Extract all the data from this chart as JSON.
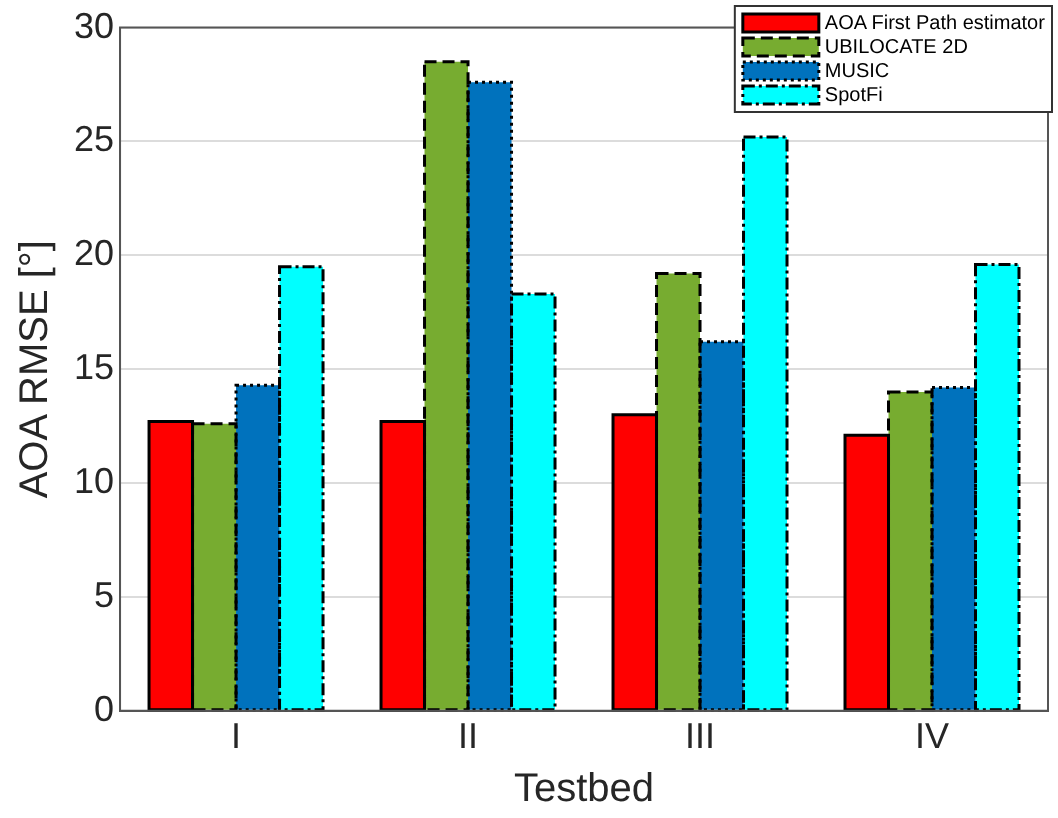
{
  "chart_data": {
    "type": "bar",
    "xlabel": "Testbed",
    "ylabel": "AOA RMSE [°]",
    "categories": [
      "I",
      "II",
      "III",
      "IV"
    ],
    "series": [
      {
        "name": "AOA First Path estimator",
        "color": "#ff0000",
        "line_style": "solid",
        "values": [
          12.7,
          12.7,
          13.0,
          12.1
        ]
      },
      {
        "name": "UBILOCATE 2D",
        "color": "#77ac30",
        "line_style": "dashed",
        "values": [
          12.6,
          28.5,
          19.2,
          14.0
        ]
      },
      {
        "name": "MUSIC",
        "color": "#0072bd",
        "line_style": "dotted",
        "values": [
          14.3,
          27.6,
          16.2,
          14.2
        ]
      },
      {
        "name": "SpotFi",
        "color": "#00ffff",
        "line_style": "dashdot",
        "values": [
          19.5,
          18.3,
          25.2,
          19.6
        ]
      }
    ],
    "ylim": [
      0,
      30
    ],
    "yticks": [
      0,
      5,
      10,
      15,
      20,
      25,
      30
    ],
    "grid": "y",
    "legend": "top right"
  }
}
